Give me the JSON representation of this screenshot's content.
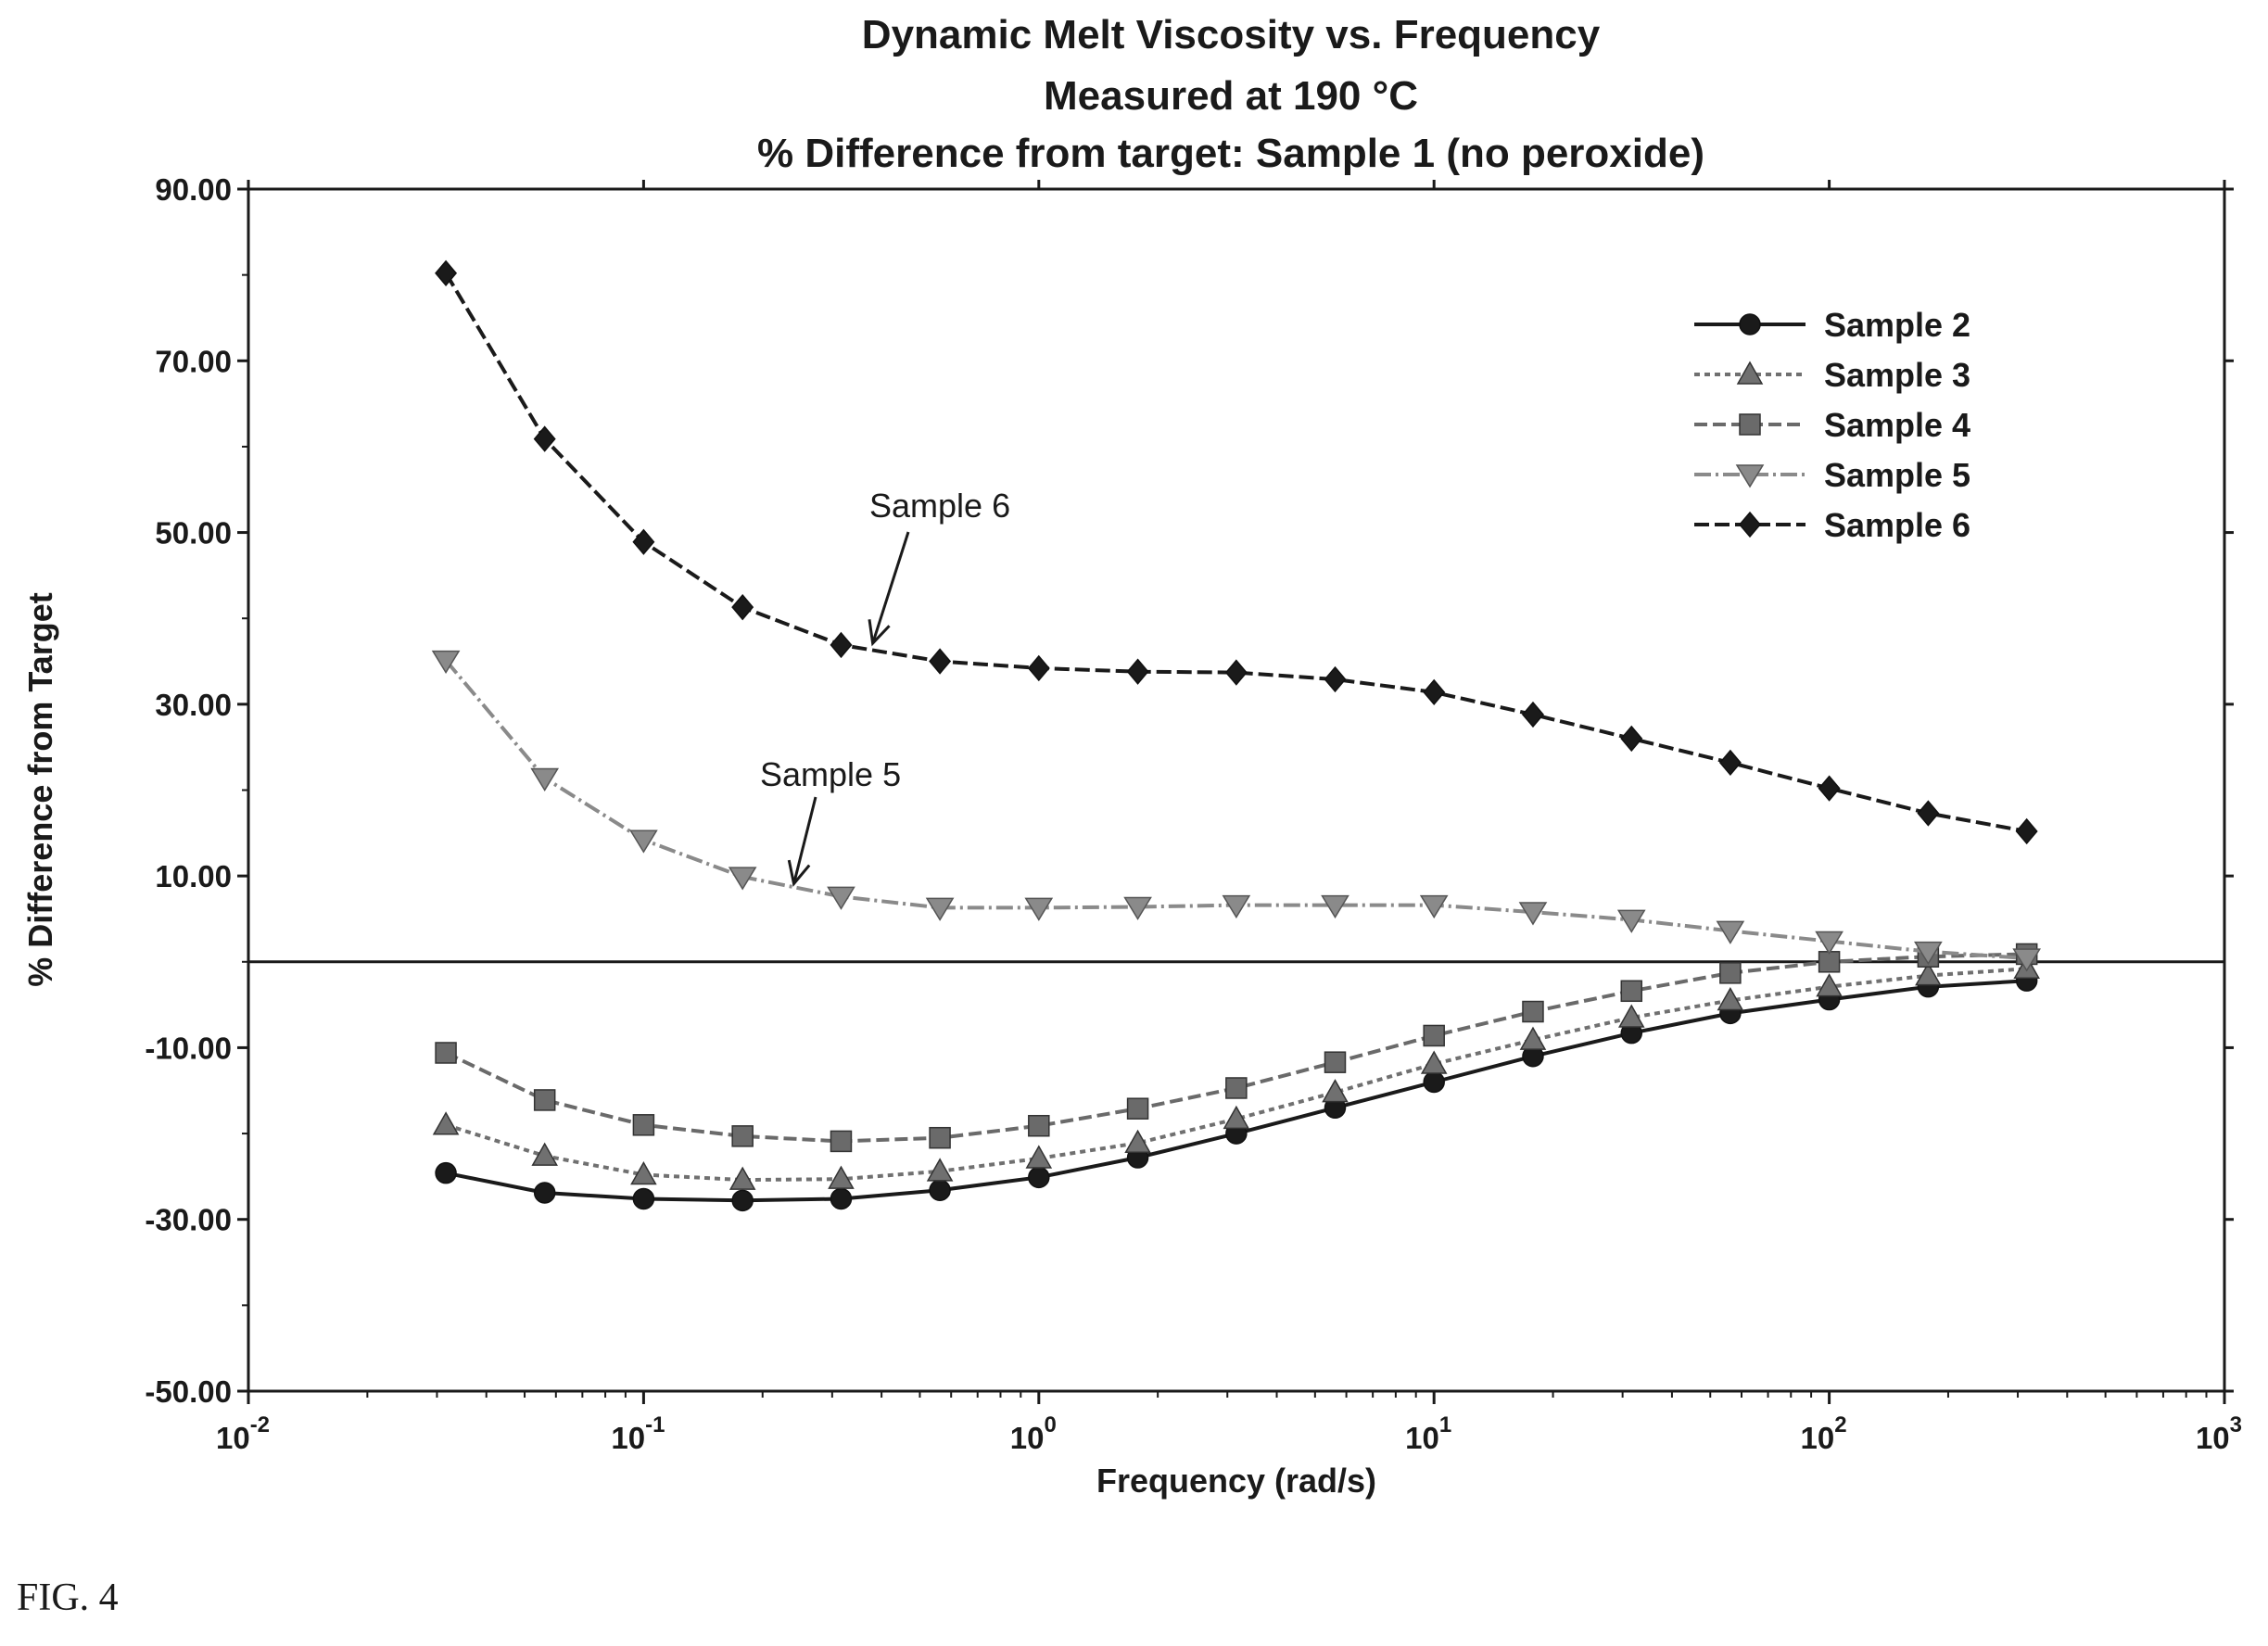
{
  "figure_label": "FIG. 4",
  "chart_data": {
    "type": "line",
    "title": [
      "Dynamic Melt Viscosity vs. Frequency",
      "Measured at 190 °C",
      "% Difference from target: Sample 1 (no peroxide)"
    ],
    "xlabel": "Frequency (rad/s)",
    "ylabel": "% Difference from Target",
    "x_scale": "log",
    "xlim": [
      0.01,
      1000
    ],
    "ylim": [
      -50,
      90
    ],
    "x_ticks": [
      {
        "value": 0.01,
        "base": "10",
        "exp": "-2"
      },
      {
        "value": 0.1,
        "base": "10",
        "exp": "-1"
      },
      {
        "value": 1,
        "base": "10",
        "exp": "0"
      },
      {
        "value": 10,
        "base": "10",
        "exp": "1"
      },
      {
        "value": 100,
        "base": "10",
        "exp": "2"
      },
      {
        "value": 1000,
        "base": "10",
        "exp": "3"
      }
    ],
    "y_ticks": [
      {
        "value": 90,
        "label": "90.00"
      },
      {
        "value": 70,
        "label": "70.00"
      },
      {
        "value": 50,
        "label": "50.00"
      },
      {
        "value": 30,
        "label": "30.00"
      },
      {
        "value": 10,
        "label": "10.00"
      },
      {
        "value": -10,
        "label": "-10.00"
      },
      {
        "value": -30,
        "label": "-30.00"
      },
      {
        "value": -50,
        "label": "-50.00"
      }
    ],
    "reference_line": 0,
    "legend_position": "top-right",
    "grid": false,
    "x": [
      0.0316,
      0.0562,
      0.1,
      0.178,
      0.316,
      0.562,
      1.0,
      1.78,
      3.16,
      5.62,
      10,
      17.8,
      31.6,
      56.2,
      100,
      178,
      316
    ],
    "series": [
      {
        "name": "Sample 2",
        "marker": "circle",
        "color": "#1a1a1a",
        "dash": "",
        "values": [
          -24.6,
          -26.9,
          -27.6,
          -27.8,
          -27.6,
          -26.6,
          -25.1,
          -22.8,
          -20.0,
          -17.0,
          -14.0,
          -11.0,
          -8.3,
          -6.0,
          -4.4,
          -2.9,
          -2.2
        ]
      },
      {
        "name": "Sample 3",
        "marker": "triangle-up",
        "color": "#707070",
        "dash": "6 5",
        "values": [
          -19.0,
          -22.6,
          -24.8,
          -25.4,
          -25.3,
          -24.4,
          -22.9,
          -21.1,
          -18.3,
          -15.2,
          -11.9,
          -9.1,
          -6.5,
          -4.5,
          -2.9,
          -1.6,
          -0.8
        ]
      },
      {
        "name": "Sample 4",
        "marker": "square",
        "color": "#6a6a6a",
        "dash": "14 6",
        "values": [
          -10.6,
          -16.1,
          -19.0,
          -20.3,
          -20.9,
          -20.5,
          -19.1,
          -17.1,
          -14.7,
          -11.7,
          -8.6,
          -5.8,
          -3.4,
          -1.3,
          0.0,
          0.6,
          0.9
        ]
      },
      {
        "name": "Sample 5",
        "marker": "triangle-down",
        "color": "#8a8a8a",
        "dash": "18 5 3 5",
        "values": [
          35.1,
          21.4,
          14.2,
          9.9,
          7.6,
          6.3,
          6.3,
          6.4,
          6.6,
          6.6,
          6.6,
          5.8,
          4.9,
          3.6,
          2.4,
          1.2,
          0.4
        ]
      },
      {
        "name": "Sample 6",
        "marker": "diamond",
        "color": "#1a1a1a",
        "dash": "16 6",
        "values": [
          80.2,
          60.9,
          48.9,
          41.3,
          36.9,
          35.0,
          34.2,
          33.8,
          33.7,
          32.9,
          31.4,
          28.8,
          26.0,
          23.2,
          20.2,
          17.3,
          15.2
        ]
      }
    ],
    "annotations": [
      {
        "text": "Sample 6",
        "arrow_to": {
          "x": 0.38,
          "y": 37.1
        }
      },
      {
        "text": "Sample 5",
        "arrow_to": {
          "x": 0.24,
          "y": 9.1
        }
      }
    ]
  }
}
